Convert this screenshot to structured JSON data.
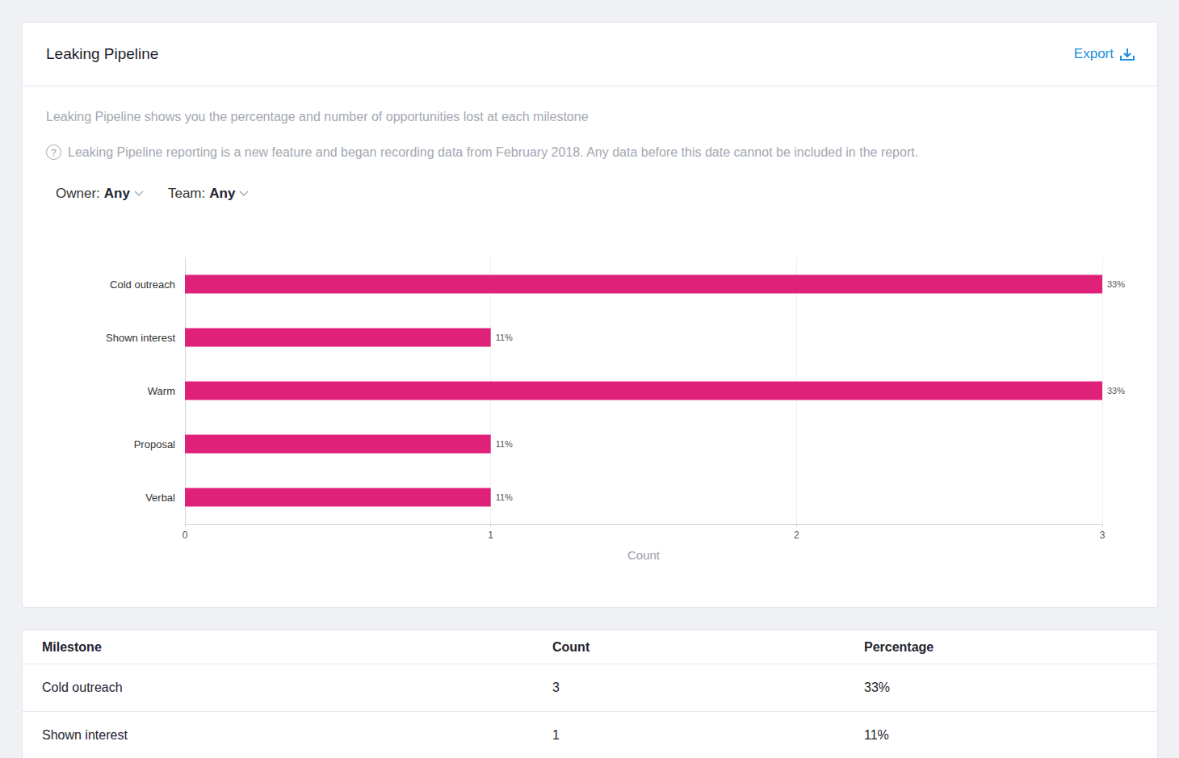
{
  "page": {
    "title": "Leaking Pipeline",
    "export": "Export",
    "description": "Leaking Pipeline shows you the percentage and number of opportunities lost at each milestone",
    "note_icon": "?",
    "note": "Leaking Pipeline reporting is a new feature and began recording data from February 2018. Any data before this date cannot be included in the report.",
    "filters": [
      {
        "label": "Owner:",
        "value": "Any"
      },
      {
        "label": "Team:",
        "value": "Any"
      }
    ]
  },
  "chart_data": {
    "type": "bar",
    "orientation": "horizontal",
    "categories": [
      "Cold outreach",
      "Shown interest",
      "Warm",
      "Proposal",
      "Verbal"
    ],
    "values": [
      3,
      1,
      3,
      1,
      1
    ],
    "percentage_labels": [
      "33%",
      "11%",
      "33%",
      "11%",
      "11%"
    ],
    "color": "#e0217a",
    "xlabel": "Count",
    "xlim": [
      0,
      3
    ],
    "xticks": [
      0,
      1,
      2,
      3
    ],
    "grid": true
  },
  "table": {
    "header": [
      "Milestone",
      "Count",
      "Percentage"
    ],
    "rows": [
      [
        "Cold outreach",
        "3",
        "33%"
      ],
      [
        "Shown interest",
        "1",
        "11%"
      ]
    ]
  }
}
